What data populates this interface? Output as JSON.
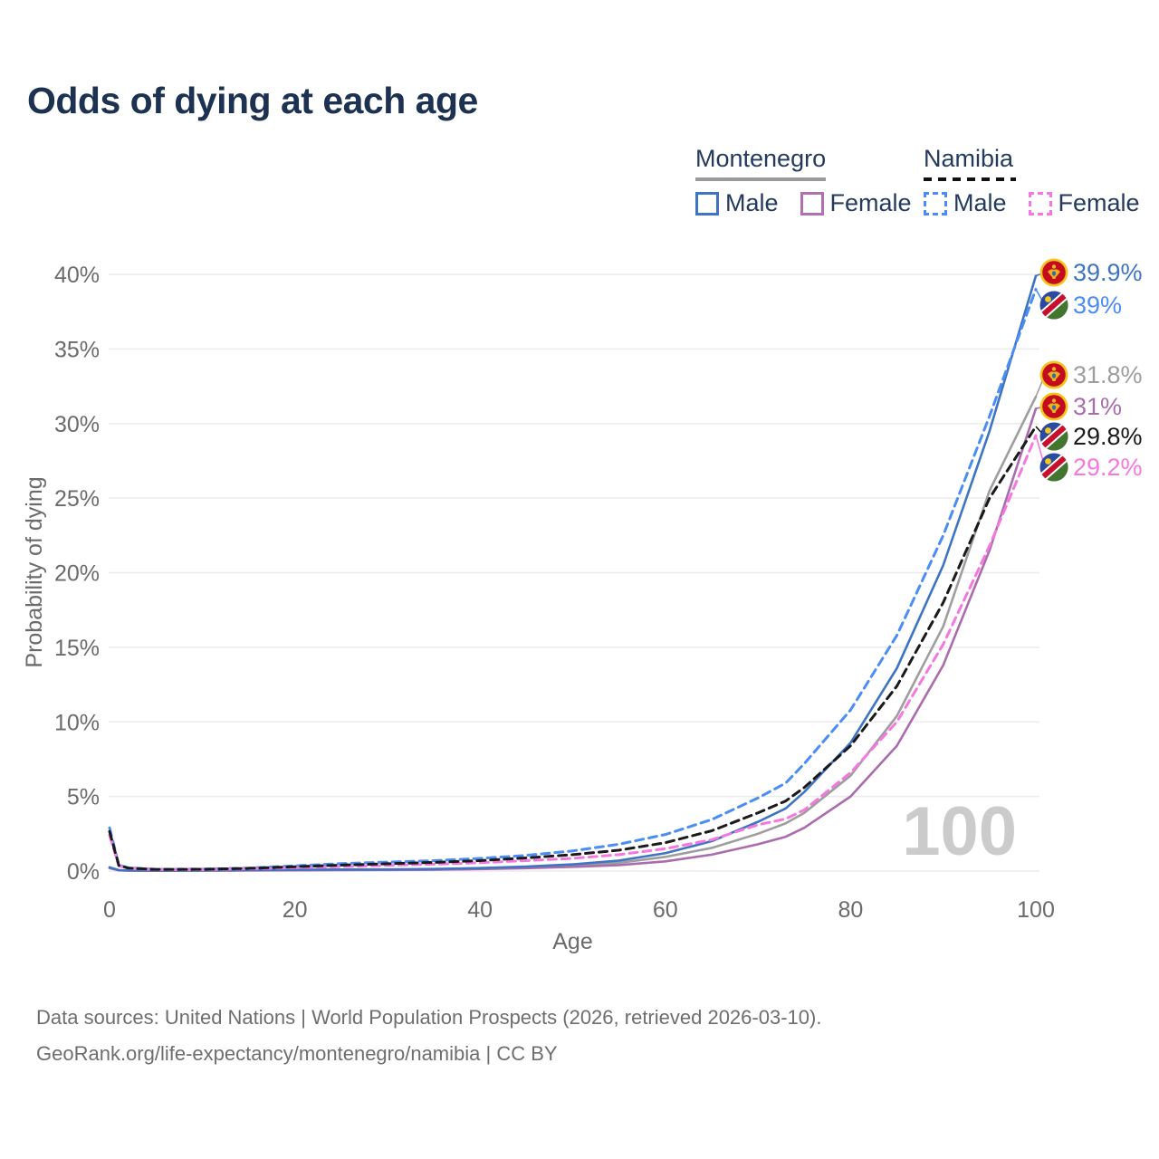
{
  "title": "Odds of dying at each age",
  "legend": {
    "groups": [
      {
        "name": "Montenegro",
        "style": "solid",
        "items": [
          {
            "label": "Male",
            "color": "#3e74c2"
          },
          {
            "label": "Female",
            "color": "#b170b0"
          }
        ]
      },
      {
        "name": "Namibia",
        "style": "dashed",
        "items": [
          {
            "label": "Male",
            "color": "#4b8cf5"
          },
          {
            "label": "Female",
            "color": "#f678de"
          }
        ]
      }
    ]
  },
  "footer": {
    "line1": "Data sources: United Nations | World Population Prospects (2026, retrieved 2026-03-10).",
    "line2": "GeoRank.org/life-expectancy/montenegro/namibia | CC BY"
  },
  "chart_data": {
    "type": "line",
    "title": "Odds of dying at each age",
    "xlabel": "Age",
    "ylabel": "Probability of dying",
    "xlim": [
      0,
      100
    ],
    "ylim": [
      0,
      40
    ],
    "x_ticks": [
      0,
      20,
      40,
      60,
      80,
      100
    ],
    "y_ticks": [
      {
        "v": 0,
        "label": "0%"
      },
      {
        "v": 5,
        "label": "5%"
      },
      {
        "v": 10,
        "label": "10%"
      },
      {
        "v": 15,
        "label": "15%"
      },
      {
        "v": 20,
        "label": "20%"
      },
      {
        "v": 25,
        "label": "25%"
      },
      {
        "v": 30,
        "label": "30%"
      },
      {
        "v": 35,
        "label": "35%"
      },
      {
        "v": 40,
        "label": "40%"
      }
    ],
    "grid": true,
    "legend_position": "top-right",
    "watermark": "100",
    "x": [
      0,
      1,
      2,
      5,
      10,
      15,
      20,
      25,
      30,
      35,
      40,
      45,
      50,
      55,
      60,
      65,
      70,
      73,
      75,
      80,
      85,
      90,
      95,
      100
    ],
    "series": [
      {
        "name": "Montenegro Total",
        "key": "montenegro-total",
        "flag": "me",
        "color": "#9e9e9e",
        "dashed": false,
        "end_label": "31.8%",
        "values": [
          0.22,
          0.055,
          0.035,
          0.025,
          0.035,
          0.05,
          0.07,
          0.08,
          0.09,
          0.11,
          0.16,
          0.24,
          0.38,
          0.55,
          0.95,
          1.55,
          2.5,
          3.2,
          3.9,
          6.4,
          10.4,
          16.4,
          25.5,
          31.8
        ]
      },
      {
        "name": "Montenegro Female",
        "key": "montenegro-female",
        "flag": "me",
        "color": "#ab6cae",
        "dashed": false,
        "end_label": "31%",
        "values": [
          0.2,
          0.05,
          0.03,
          0.02,
          0.03,
          0.04,
          0.05,
          0.06,
          0.07,
          0.09,
          0.13,
          0.19,
          0.28,
          0.4,
          0.65,
          1.1,
          1.8,
          2.3,
          2.9,
          5.0,
          8.4,
          13.8,
          21.5,
          31.0
        ]
      },
      {
        "name": "Montenegro Male",
        "key": "montenegro-male",
        "flag": "me",
        "color": "#3e74c2",
        "dashed": false,
        "end_label": "39.9%",
        "values": [
          0.25,
          0.06,
          0.04,
          0.03,
          0.04,
          0.06,
          0.09,
          0.1,
          0.11,
          0.14,
          0.2,
          0.3,
          0.45,
          0.7,
          1.2,
          2.0,
          3.3,
          4.2,
          5.3,
          8.6,
          13.6,
          20.5,
          29.5,
          39.9
        ]
      },
      {
        "name": "Namibia Male",
        "key": "namibia-male",
        "flag": "na",
        "color": "#4b8cf5",
        "dashed": true,
        "end_label": "39%",
        "values": [
          2.9,
          0.4,
          0.22,
          0.12,
          0.13,
          0.2,
          0.35,
          0.5,
          0.6,
          0.7,
          0.85,
          1.05,
          1.35,
          1.8,
          2.45,
          3.45,
          4.9,
          5.9,
          7.2,
          10.8,
          15.8,
          22.5,
          30.5,
          39.0
        ]
      },
      {
        "name": "Namibia Female",
        "key": "namibia-female",
        "flag": "na",
        "color": "#f678de",
        "dashed": true,
        "end_label": "29.2%",
        "values": [
          2.4,
          0.35,
          0.18,
          0.1,
          0.1,
          0.15,
          0.22,
          0.3,
          0.38,
          0.46,
          0.56,
          0.7,
          0.85,
          1.1,
          1.5,
          2.1,
          3.1,
          3.5,
          4.1,
          6.6,
          10.0,
          15.2,
          21.8,
          29.2
        ]
      },
      {
        "name": "Namibia Total",
        "key": "namibia-total",
        "flag": "na",
        "color": "#1a1a1a",
        "dashed": true,
        "end_label": "29.8%",
        "values": [
          2.65,
          0.38,
          0.2,
          0.11,
          0.12,
          0.18,
          0.29,
          0.4,
          0.49,
          0.58,
          0.7,
          0.88,
          1.1,
          1.4,
          1.9,
          2.7,
          3.9,
          4.7,
          5.6,
          8.4,
          12.4,
          18.0,
          25.0,
          29.8
        ]
      }
    ]
  },
  "colors": {
    "title": "#1d3150",
    "axis_text": "#6b6b6b",
    "grid": "#ececec",
    "watermark": "#cbcbcb",
    "montenegro_rule": "#9a9a9a",
    "namibia_rule": "#111111"
  }
}
